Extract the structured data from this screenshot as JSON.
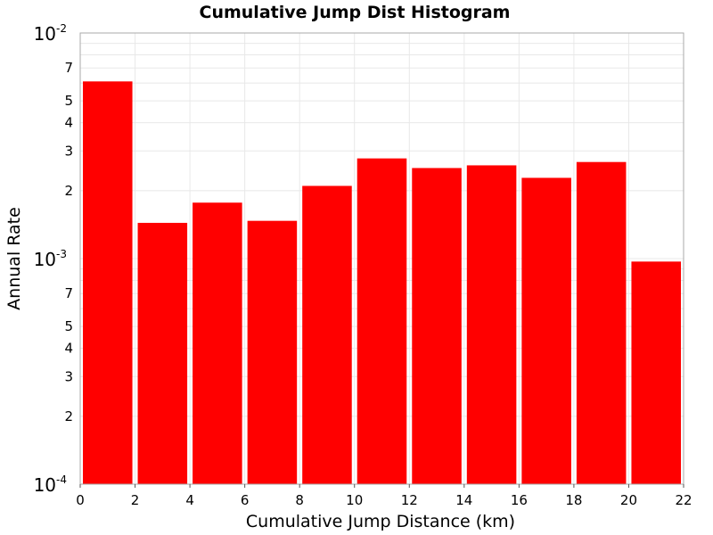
{
  "chart_data": {
    "type": "bar",
    "title": "Cumulative Jump Dist Histogram",
    "xlabel": "Cumulative Jump Distance (km)",
    "ylabel": "Annual Rate",
    "xlim": [
      0,
      22
    ],
    "ylim": [
      0.0001,
      0.01
    ],
    "y_scale": "log",
    "grid": true,
    "bar_color": "#ff0000",
    "x_ticks": [
      "0",
      "2",
      "4",
      "6",
      "8",
      "10",
      "12",
      "14",
      "16",
      "18",
      "20",
      "22"
    ],
    "y_major_ticks": [
      {
        "value": 0.0001,
        "base": "10",
        "exp": "-4"
      },
      {
        "value": 0.001,
        "base": "10",
        "exp": "-3"
      },
      {
        "value": 0.01,
        "base": "10",
        "exp": "-2"
      }
    ],
    "y_minor_tick_labels": [
      "2",
      "3",
      "4",
      "5",
      "7"
    ],
    "bins": [
      {
        "start": 0,
        "end": 2,
        "value": 0.0061
      },
      {
        "start": 2,
        "end": 4,
        "value": 0.00144
      },
      {
        "start": 4,
        "end": 6,
        "value": 0.00177
      },
      {
        "start": 6,
        "end": 8,
        "value": 0.00147
      },
      {
        "start": 8,
        "end": 10,
        "value": 0.0021
      },
      {
        "start": 10,
        "end": 12,
        "value": 0.00278
      },
      {
        "start": 12,
        "end": 14,
        "value": 0.00252
      },
      {
        "start": 14,
        "end": 16,
        "value": 0.00259
      },
      {
        "start": 16,
        "end": 18,
        "value": 0.00228
      },
      {
        "start": 18,
        "end": 20,
        "value": 0.00268
      },
      {
        "start": 20,
        "end": 22,
        "value": 0.00097
      }
    ]
  }
}
